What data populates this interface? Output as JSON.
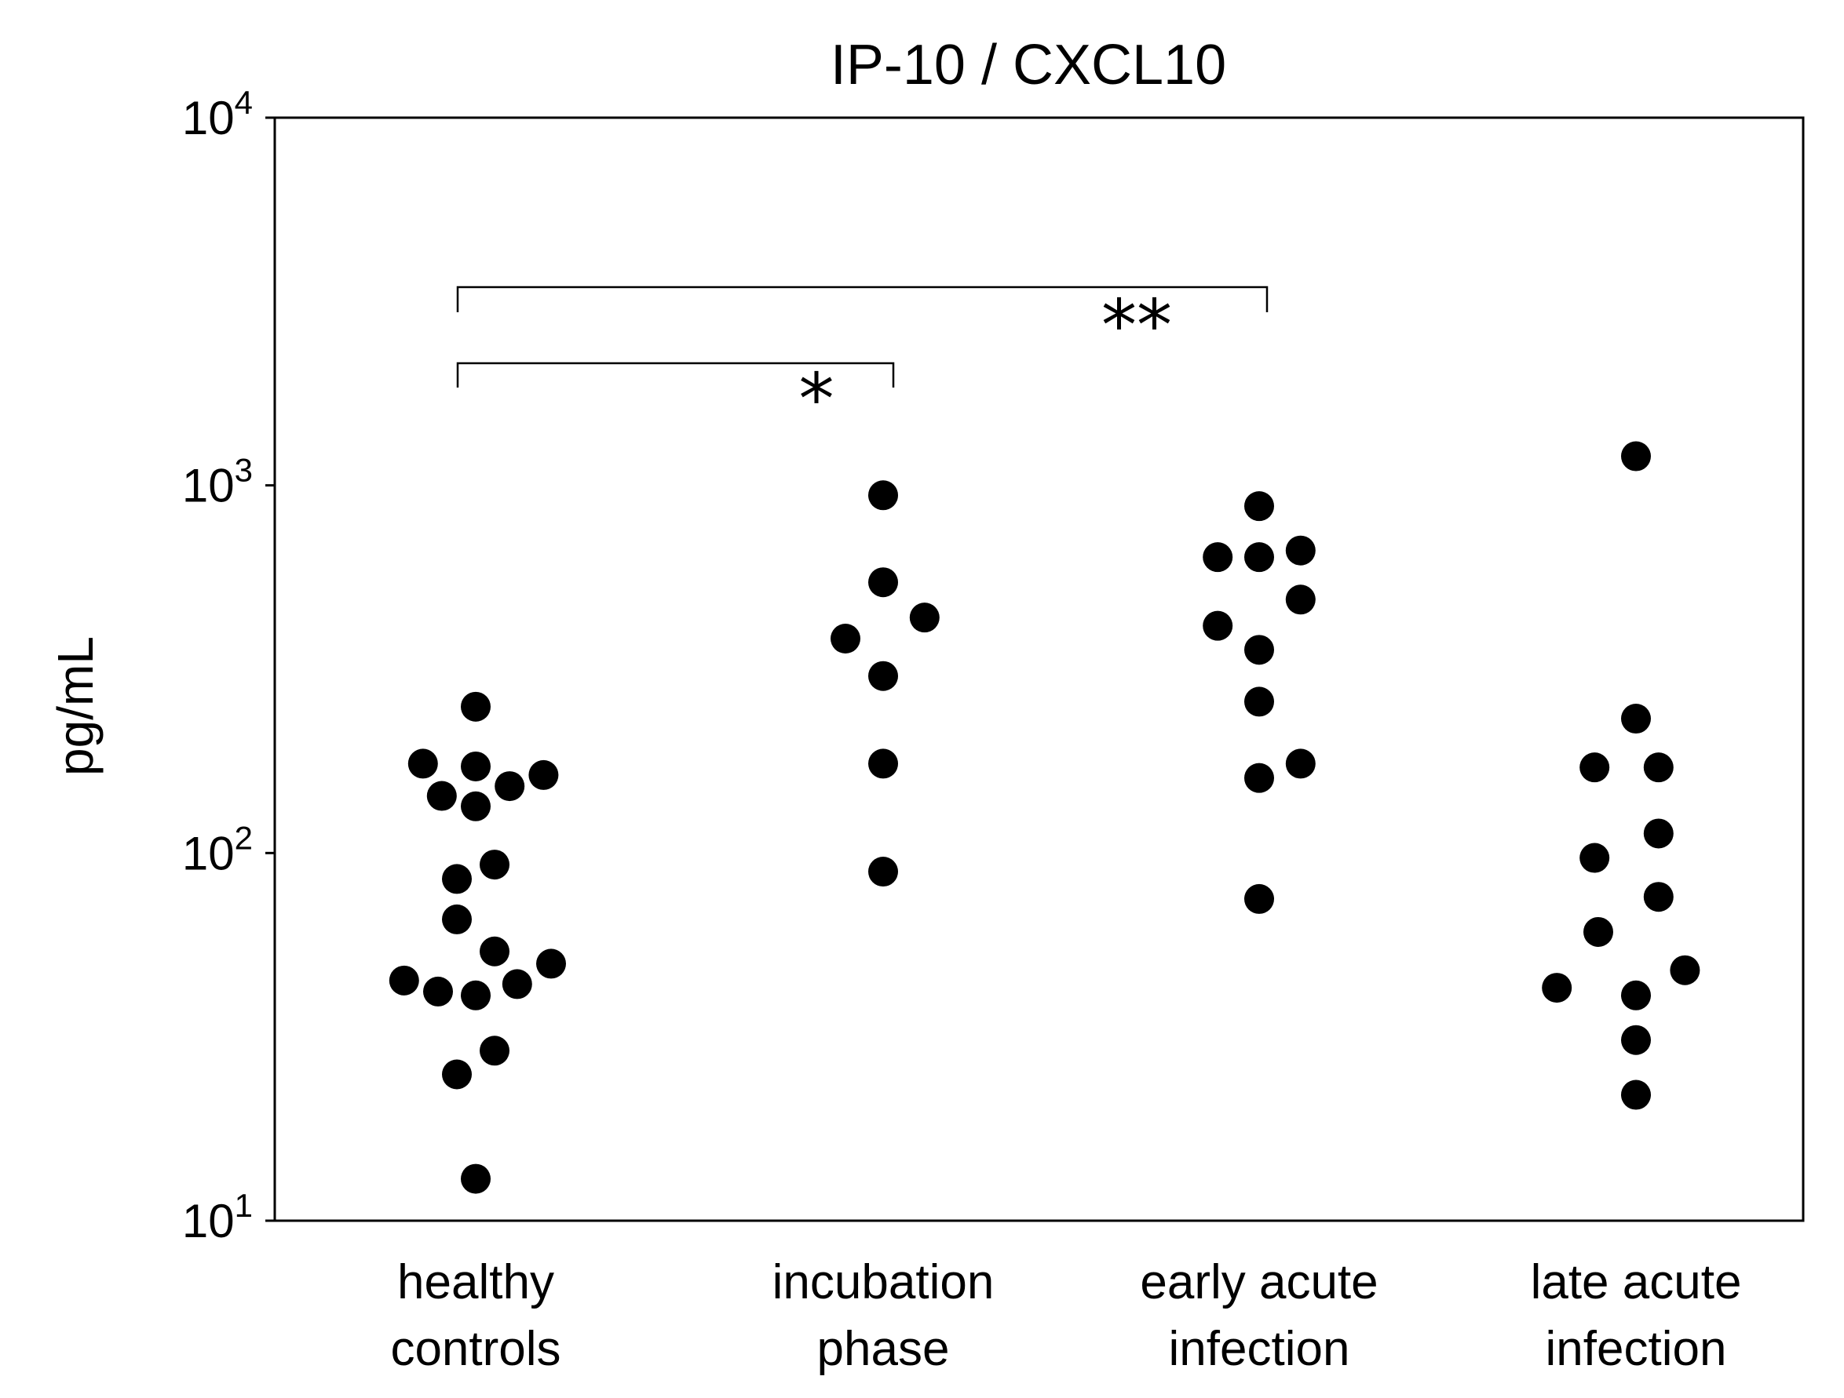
{
  "chart_data": {
    "type": "scatter",
    "title": "IP-10 / CXCL10",
    "ylabel": "pg/mL",
    "xlabel": "",
    "yscale": "log",
    "ylim": [
      10,
      10000
    ],
    "yticks": [
      {
        "value": 10,
        "base": "10",
        "exp": "1"
      },
      {
        "value": 100,
        "base": "10",
        "exp": "2"
      },
      {
        "value": 1000,
        "base": "10",
        "exp": "3"
      },
      {
        "value": 10000,
        "base": "10",
        "exp": "4"
      }
    ],
    "categories": [
      {
        "line1": "healthy",
        "line2": "controls"
      },
      {
        "line1": "incubation",
        "line2": "phase"
      },
      {
        "line1": "early acute",
        "line2": "infection"
      },
      {
        "line1": "late acute",
        "line2": "infection"
      }
    ],
    "points": [
      {
        "category": 0,
        "offset": 0.0,
        "value": 250
      },
      {
        "category": 0,
        "offset": -0.14,
        "value": 175
      },
      {
        "category": 0,
        "offset": 0.0,
        "value": 172
      },
      {
        "category": 0,
        "offset": 0.18,
        "value": 163
      },
      {
        "category": 0,
        "offset": 0.09,
        "value": 152
      },
      {
        "category": 0,
        "offset": -0.09,
        "value": 143
      },
      {
        "category": 0,
        "offset": 0.0,
        "value": 134
      },
      {
        "category": 0,
        "offset": 0.05,
        "value": 93
      },
      {
        "category": 0,
        "offset": -0.05,
        "value": 85
      },
      {
        "category": 0,
        "offset": -0.05,
        "value": 66
      },
      {
        "category": 0,
        "offset": 0.05,
        "value": 54
      },
      {
        "category": 0,
        "offset": 0.2,
        "value": 50
      },
      {
        "category": 0,
        "offset": -0.19,
        "value": 45
      },
      {
        "category": 0,
        "offset": 0.11,
        "value": 44
      },
      {
        "category": 0,
        "offset": -0.1,
        "value": 42
      },
      {
        "category": 0,
        "offset": 0.0,
        "value": 41
      },
      {
        "category": 0,
        "offset": 0.05,
        "value": 29
      },
      {
        "category": 0,
        "offset": -0.05,
        "value": 25
      },
      {
        "category": 0,
        "offset": 0.0,
        "value": 13
      },
      {
        "category": 1,
        "offset": 0.0,
        "value": 940
      },
      {
        "category": 1,
        "offset": 0.0,
        "value": 545
      },
      {
        "category": 1,
        "offset": 0.11,
        "value": 437
      },
      {
        "category": 1,
        "offset": -0.1,
        "value": 383
      },
      {
        "category": 1,
        "offset": 0.0,
        "value": 303
      },
      {
        "category": 1,
        "offset": 0.0,
        "value": 175
      },
      {
        "category": 1,
        "offset": 0.0,
        "value": 89
      },
      {
        "category": 2,
        "offset": 0.0,
        "value": 878
      },
      {
        "category": 2,
        "offset": -0.11,
        "value": 638
      },
      {
        "category": 2,
        "offset": 0.0,
        "value": 638
      },
      {
        "category": 2,
        "offset": 0.11,
        "value": 665
      },
      {
        "category": 2,
        "offset": 0.11,
        "value": 489
      },
      {
        "category": 2,
        "offset": -0.11,
        "value": 415
      },
      {
        "category": 2,
        "offset": 0.0,
        "value": 357
      },
      {
        "category": 2,
        "offset": 0.0,
        "value": 258
      },
      {
        "category": 2,
        "offset": 0.11,
        "value": 175
      },
      {
        "category": 2,
        "offset": 0.0,
        "value": 160
      },
      {
        "category": 2,
        "offset": 0.0,
        "value": 75
      },
      {
        "category": 3,
        "offset": 0.0,
        "value": 1200
      },
      {
        "category": 3,
        "offset": 0.0,
        "value": 232
      },
      {
        "category": 3,
        "offset": -0.11,
        "value": 171
      },
      {
        "category": 3,
        "offset": 0.06,
        "value": 171
      },
      {
        "category": 3,
        "offset": 0.06,
        "value": 113
      },
      {
        "category": 3,
        "offset": -0.11,
        "value": 97
      },
      {
        "category": 3,
        "offset": 0.06,
        "value": 76
      },
      {
        "category": 3,
        "offset": -0.1,
        "value": 61
      },
      {
        "category": 3,
        "offset": 0.13,
        "value": 48
      },
      {
        "category": 3,
        "offset": -0.21,
        "value": 43
      },
      {
        "category": 3,
        "offset": 0.0,
        "value": 41
      },
      {
        "category": 3,
        "offset": 0.0,
        "value": 31
      },
      {
        "category": 3,
        "offset": 0.0,
        "value": 22
      }
    ],
    "significance": [
      {
        "from": 0,
        "to": 1,
        "label": "*"
      },
      {
        "from": 0,
        "to": 2,
        "label": "**"
      }
    ]
  }
}
